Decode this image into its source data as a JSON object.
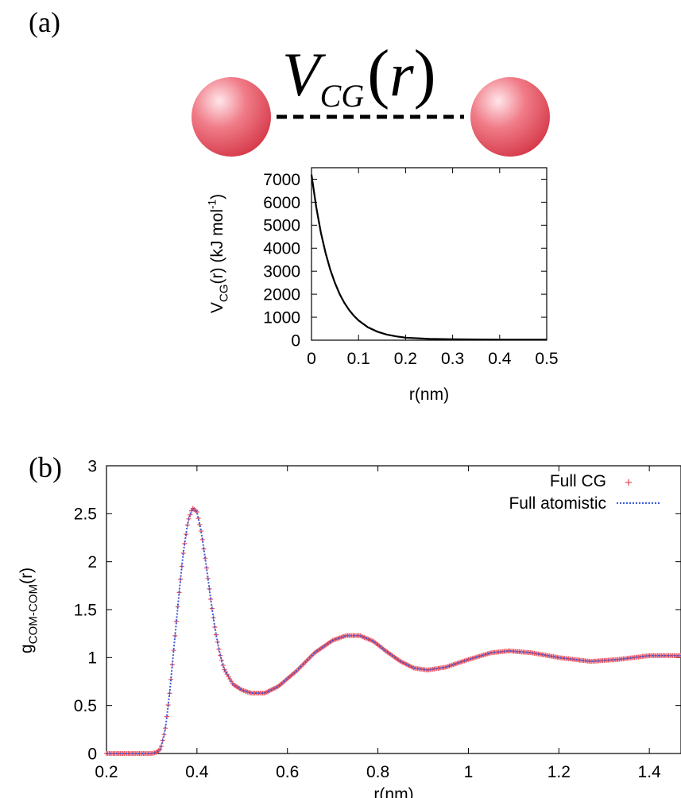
{
  "panel_a": {
    "label": "(a)",
    "formula": {
      "main": "V",
      "subscript": "CG",
      "open": "(",
      "arg": "r",
      "close": ")"
    },
    "colors": {
      "bead": "#e8505e",
      "bond": "#000000"
    }
  },
  "panel_b": {
    "label": "(b)"
  },
  "chart_data": [
    {
      "type": "line",
      "xlabel": "r(nm)",
      "ylabel": {
        "main": "V",
        "sub": "CG",
        "rest": "(r) (kJ mol",
        "sup": "-1",
        "end": ")"
      },
      "xlim": [
        0,
        0.5
      ],
      "ylim": [
        0,
        7500
      ],
      "xticks": [
        "0",
        "0.1",
        "0.2",
        "0.3",
        "0.4",
        "0.5"
      ],
      "yticks": [
        "0",
        "1000",
        "2000",
        "3000",
        "4000",
        "5000",
        "6000",
        "7000"
      ],
      "grid": false,
      "series": [
        {
          "color": "#000000",
          "x": [
            0,
            0.01,
            0.02,
            0.03,
            0.04,
            0.05,
            0.06,
            0.07,
            0.08,
            0.09,
            0.1,
            0.12,
            0.14,
            0.16,
            0.18,
            0.2,
            0.25,
            0.3,
            0.35,
            0.4,
            0.45,
            0.5
          ],
          "y": [
            7200,
            5800,
            4680,
            3780,
            3060,
            2480,
            2000,
            1620,
            1310,
            1060,
            860,
            560,
            370,
            245,
            165,
            110,
            60,
            40,
            30,
            25,
            20,
            20
          ]
        }
      ]
    },
    {
      "type": "line",
      "xlabel": "r(nm)",
      "ylabel": {
        "main": "g",
        "sub": "COM-COM",
        "rest": "(r)"
      },
      "xlim": [
        0.2,
        1.47
      ],
      "ylim": [
        0,
        3
      ],
      "xticks": [
        "0.2",
        "0.4",
        "0.6",
        "0.8",
        "1",
        "1.2",
        "1.4"
      ],
      "yticks": [
        "0",
        "0.5",
        "1",
        "1.5",
        "2",
        "2.5",
        "3"
      ],
      "grid": false,
      "legend_position": "top-right",
      "series": [
        {
          "name": "Full CG",
          "style": "points",
          "color": "#e8505e",
          "x": [
            0.2,
            0.3,
            0.31,
            0.32,
            0.33,
            0.34,
            0.35,
            0.36,
            0.37,
            0.38,
            0.39,
            0.4,
            0.41,
            0.42,
            0.43,
            0.44,
            0.45,
            0.46,
            0.48,
            0.5,
            0.52,
            0.55,
            0.58,
            0.62,
            0.66,
            0.7,
            0.73,
            0.76,
            0.79,
            0.82,
            0.85,
            0.88,
            0.91,
            0.95,
            1.0,
            1.05,
            1.09,
            1.14,
            1.2,
            1.27,
            1.33,
            1.4,
            1.47
          ],
          "y": [
            0,
            0,
            0.01,
            0.05,
            0.25,
            0.65,
            1.15,
            1.65,
            2.1,
            2.42,
            2.56,
            2.52,
            2.3,
            1.98,
            1.62,
            1.3,
            1.05,
            0.88,
            0.72,
            0.66,
            0.63,
            0.63,
            0.7,
            0.86,
            1.05,
            1.18,
            1.23,
            1.23,
            1.17,
            1.06,
            0.96,
            0.89,
            0.87,
            0.9,
            0.98,
            1.05,
            1.07,
            1.05,
            1.0,
            0.96,
            0.98,
            1.02,
            1.02
          ]
        },
        {
          "name": "Full atomistic",
          "style": "dotted",
          "color": "#3b5bdb",
          "x": [
            0.2,
            0.3,
            0.31,
            0.32,
            0.33,
            0.34,
            0.35,
            0.36,
            0.37,
            0.38,
            0.39,
            0.4,
            0.41,
            0.42,
            0.43,
            0.44,
            0.45,
            0.46,
            0.48,
            0.5,
            0.52,
            0.55,
            0.58,
            0.62,
            0.66,
            0.7,
            0.73,
            0.76,
            0.79,
            0.82,
            0.85,
            0.88,
            0.91,
            0.95,
            1.0,
            1.05,
            1.09,
            1.14,
            1.2,
            1.27,
            1.33,
            1.4,
            1.47
          ],
          "y": [
            0,
            0,
            0.01,
            0.05,
            0.25,
            0.65,
            1.15,
            1.65,
            2.1,
            2.42,
            2.56,
            2.52,
            2.3,
            1.98,
            1.62,
            1.3,
            1.05,
            0.88,
            0.72,
            0.66,
            0.63,
            0.63,
            0.7,
            0.86,
            1.05,
            1.18,
            1.23,
            1.23,
            1.17,
            1.06,
            0.96,
            0.89,
            0.87,
            0.9,
            0.98,
            1.05,
            1.07,
            1.05,
            1.0,
            0.96,
            0.98,
            1.02,
            1.02
          ]
        }
      ]
    }
  ]
}
